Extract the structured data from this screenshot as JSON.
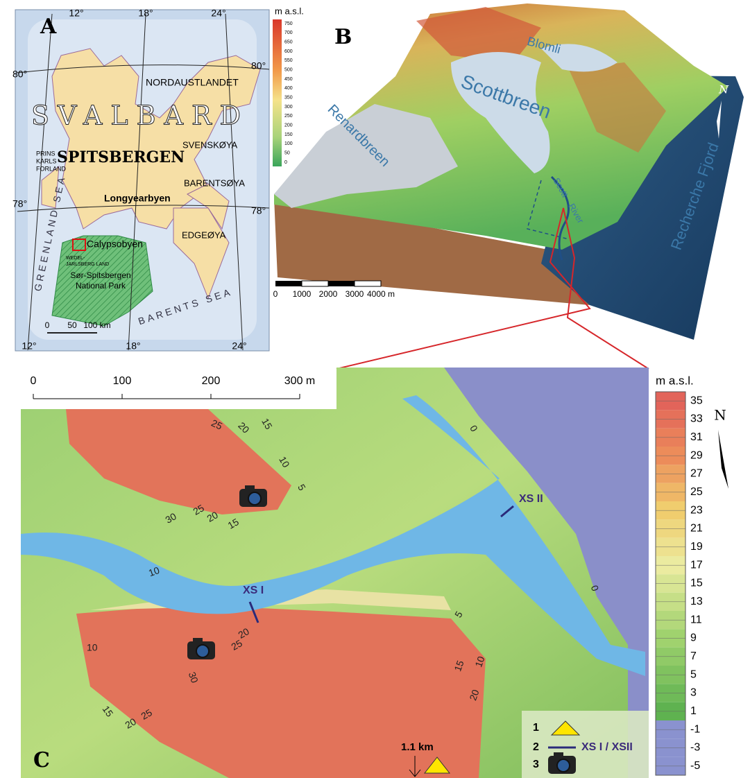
{
  "figure": {
    "panel_a": {
      "label": "A",
      "legend_title": "m a.s.l.",
      "legend_ticks": [
        750,
        700,
        650,
        600,
        550,
        500,
        450,
        400,
        350,
        300,
        250,
        200,
        150,
        100,
        50,
        0
      ],
      "meridians": [
        "12°",
        "18°",
        "24°"
      ],
      "parallels": [
        "80°",
        "78°"
      ],
      "places": [
        [
          "NORDAUSTLANDET"
        ],
        [
          "SVALBARD"
        ],
        [
          "SPITSBERGEN"
        ],
        [
          "SVENSKØYA"
        ],
        [
          "PRINS",
          "KARLS",
          "FORLAND"
        ],
        [
          "BARENTSØYA"
        ],
        [
          "Longyearbyen"
        ],
        [
          "EDGEØYA"
        ],
        [
          "Calypsobyen"
        ],
        [
          "WEDEL-",
          "JARLSBERG LAND"
        ],
        [
          "Sør-Spitsbergen",
          "National Park"
        ]
      ],
      "seas": [
        "GREENLAND SEA",
        "BARENTS SEA"
      ],
      "scale": [
        "0",
        "50",
        "100 km"
      ]
    },
    "panel_b": {
      "label": "B",
      "names": [
        "Scottbreen",
        "Blomli",
        "Renardbreen",
        "Scott",
        "River",
        "Recherche Fjord"
      ],
      "north": "N",
      "scale": [
        "0",
        "1000",
        "2000",
        "3000",
        "4000 m"
      ]
    },
    "panel_c": {
      "label": "C",
      "scale": [
        "0",
        "100",
        "200",
        "300 m"
      ],
      "north": "N",
      "legend_title": "m a.s.l.",
      "legend_ticks": [
        35,
        33,
        31,
        29,
        27,
        25,
        23,
        21,
        19,
        17,
        15,
        13,
        11,
        9,
        7,
        5,
        3,
        1,
        -1,
        -3,
        -5
      ],
      "contours": [
        "25",
        "20",
        "15",
        "10",
        "5",
        "0",
        "30",
        "25",
        "20",
        "15",
        "10",
        "0",
        "10",
        "5",
        "20",
        "25",
        "30",
        "15",
        "10",
        "20",
        "15",
        "20",
        "25"
      ],
      "sections": [
        "XS I",
        "XS II"
      ],
      "distance": "1.1 km",
      "key": {
        "numbers": [
          "1",
          "2",
          "3"
        ],
        "section_label": "XS I / XSII"
      }
    }
  }
}
